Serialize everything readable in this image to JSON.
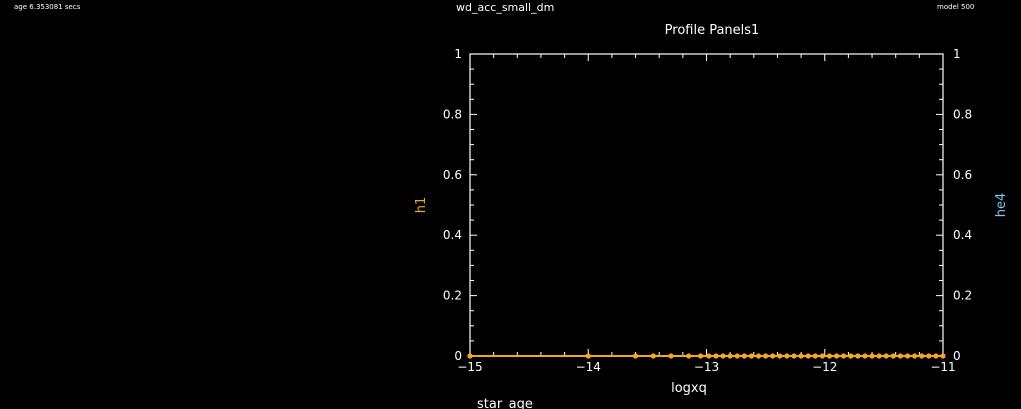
{
  "header": {
    "age_text": "age 6.353081 secs",
    "run_name": "wd_acc_small_dm",
    "model_text": "model 500"
  },
  "chart_data": {
    "type": "line",
    "title": "Profile Panels1",
    "xlabel": "logxq",
    "ylabel_left": "h1",
    "ylabel_right": "he4",
    "xlim": [
      -15,
      -11
    ],
    "ylim_left": [
      0,
      1
    ],
    "ylim_right": [
      0,
      1
    ],
    "x_ticks": [
      -15,
      -14,
      -13,
      -12,
      -11
    ],
    "x_tick_labels": [
      "−15",
      "−14",
      "−13",
      "−12",
      "−11"
    ],
    "y_ticks": [
      0,
      0.2,
      0.4,
      0.6,
      0.8,
      1
    ],
    "y_tick_labels": [
      "0",
      "0.2",
      "0.4",
      "0.6",
      "0.8",
      "1"
    ],
    "grid": false,
    "series": [
      {
        "name": "h1",
        "color": "#f5a623",
        "points_x": [
          -15,
          -14.0,
          -13.6,
          -13.45,
          -13.3,
          -13.15,
          -13.05,
          -12.98,
          -12.92,
          -12.86,
          -12.8,
          -12.74,
          -12.68,
          -12.62,
          -12.56,
          -12.5,
          -12.44,
          -12.38,
          -12.32,
          -12.26,
          -12.2,
          -12.14,
          -12.08,
          -12.02,
          -11.96,
          -11.9,
          -11.84,
          -11.78,
          -11.72,
          -11.66,
          -11.6,
          -11.54,
          -11.48,
          -11.42,
          -11.36,
          -11.3,
          -11.24,
          -11.18,
          -11.12,
          -11.06,
          -11.0
        ],
        "points_y": [
          0,
          0,
          0,
          0,
          0,
          0,
          0,
          0,
          0,
          0,
          0,
          0,
          0,
          0,
          0,
          0,
          0,
          0,
          0,
          0,
          0,
          0,
          0,
          0,
          0,
          0,
          0,
          0,
          0,
          0,
          0,
          0,
          0,
          0,
          0,
          0,
          0,
          0,
          0,
          0,
          0
        ]
      }
    ],
    "colors": {
      "h1": "#f5a623",
      "he4": "#7ec8f0",
      "axis": "#ffffff"
    }
  },
  "footer": {
    "star_age_label": "star_age"
  }
}
